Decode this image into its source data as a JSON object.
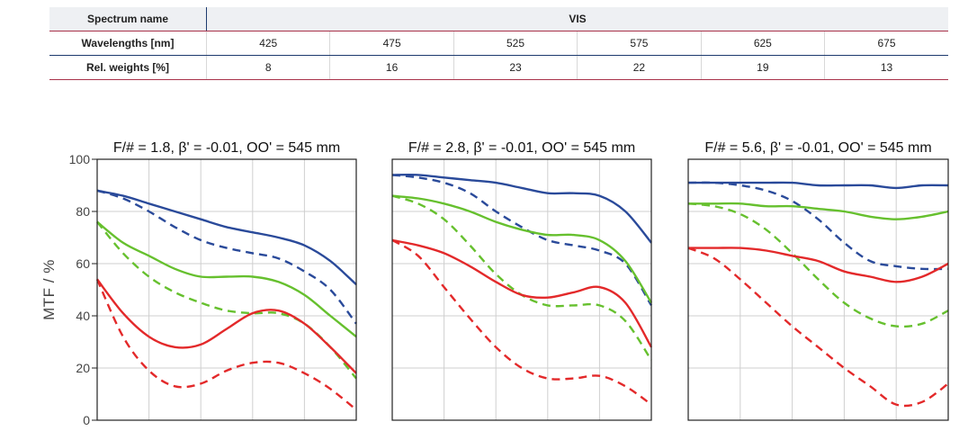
{
  "table": {
    "row1": {
      "label": "Spectrum name",
      "value": "VIS"
    },
    "row2": {
      "label": "Wavelengths [nm]",
      "values": [
        "425",
        "475",
        "525",
        "575",
        "625",
        "675"
      ]
    },
    "row3": {
      "label": "Rel. weights [%]",
      "values": [
        "8",
        "16",
        "23",
        "22",
        "19",
        "13"
      ]
    }
  },
  "colors": {
    "blue": "#2a4a9a",
    "green": "#66c02e",
    "red": "#e3292a"
  },
  "chart_data": [
    {
      "type": "line",
      "title": "F/# = 1.8, β' = -0.01, OO' = 545 mm",
      "ylabel": "MTF / %",
      "yticks": [
        "0",
        "20",
        "40",
        "60",
        "80",
        "100"
      ],
      "ylim": [
        0,
        100
      ],
      "xlim": [
        0,
        1
      ],
      "grid": true,
      "x": [
        0,
        0.1,
        0.2,
        0.3,
        0.4,
        0.5,
        0.6,
        0.7,
        0.8,
        0.9,
        1.0
      ],
      "series": [
        {
          "color": "blue",
          "dashed": false,
          "values": [
            88,
            86,
            83,
            80,
            77,
            74,
            72,
            70,
            67,
            61,
            52
          ]
        },
        {
          "color": "blue",
          "dashed": true,
          "values": [
            88,
            85,
            80,
            74,
            69,
            66,
            64,
            62,
            57,
            50,
            37
          ]
        },
        {
          "color": "green",
          "dashed": false,
          "values": [
            76,
            68,
            63,
            58,
            55,
            55,
            55,
            53,
            48,
            40,
            32
          ]
        },
        {
          "color": "green",
          "dashed": true,
          "values": [
            76,
            64,
            55,
            49,
            45,
            42,
            41,
            41,
            37,
            28,
            16
          ]
        },
        {
          "color": "red",
          "dashed": false,
          "values": [
            54,
            41,
            32,
            28,
            29,
            35,
            41,
            42,
            37,
            28,
            18
          ]
        },
        {
          "color": "red",
          "dashed": true,
          "values": [
            54,
            32,
            19,
            13,
            14,
            19,
            22,
            22,
            18,
            12,
            4
          ]
        }
      ]
    },
    {
      "type": "line",
      "title": "F/# = 2.8, β' = -0.01, OO' = 545 mm",
      "ylim": [
        0,
        100
      ],
      "xlim": [
        0,
        1
      ],
      "grid": true,
      "x": [
        0,
        0.1,
        0.2,
        0.3,
        0.4,
        0.5,
        0.6,
        0.7,
        0.8,
        0.9,
        1.0
      ],
      "series": [
        {
          "color": "blue",
          "dashed": false,
          "values": [
            94,
            94,
            93,
            92,
            91,
            89,
            87,
            87,
            86,
            80,
            68
          ]
        },
        {
          "color": "blue",
          "dashed": true,
          "values": [
            94,
            93,
            91,
            87,
            80,
            74,
            69,
            67,
            65,
            60,
            44
          ]
        },
        {
          "color": "green",
          "dashed": false,
          "values": [
            86,
            85,
            83,
            80,
            76,
            73,
            71,
            71,
            69,
            61,
            45
          ]
        },
        {
          "color": "green",
          "dashed": true,
          "values": [
            86,
            83,
            77,
            67,
            56,
            48,
            44,
            44,
            44,
            38,
            23
          ]
        },
        {
          "color": "red",
          "dashed": false,
          "values": [
            69,
            67,
            64,
            59,
            53,
            48,
            47,
            49,
            51,
            45,
            28
          ]
        },
        {
          "color": "red",
          "dashed": true,
          "values": [
            69,
            63,
            51,
            39,
            28,
            20,
            16,
            16,
            17,
            13,
            6
          ]
        }
      ]
    },
    {
      "type": "line",
      "title": "F/# = 5.6, β' = -0.01, OO' = 545 mm",
      "ylim": [
        0,
        100
      ],
      "xlim": [
        0,
        1
      ],
      "grid": true,
      "x": [
        0,
        0.1,
        0.2,
        0.3,
        0.4,
        0.5,
        0.6,
        0.7,
        0.8,
        0.9,
        1.0
      ],
      "series": [
        {
          "color": "blue",
          "dashed": false,
          "values": [
            91,
            91,
            91,
            91,
            91,
            90,
            90,
            90,
            89,
            90,
            90
          ]
        },
        {
          "color": "blue",
          "dashed": true,
          "values": [
            91,
            91,
            90,
            88,
            84,
            77,
            68,
            61,
            59,
            58,
            58
          ]
        },
        {
          "color": "green",
          "dashed": false,
          "values": [
            83,
            83,
            83,
            82,
            82,
            81,
            80,
            78,
            77,
            78,
            80
          ]
        },
        {
          "color": "green",
          "dashed": true,
          "values": [
            83,
            82,
            79,
            73,
            64,
            54,
            45,
            39,
            36,
            37,
            42
          ]
        },
        {
          "color": "red",
          "dashed": false,
          "values": [
            66,
            66,
            66,
            65,
            63,
            61,
            57,
            55,
            53,
            55,
            60
          ]
        },
        {
          "color": "red",
          "dashed": true,
          "values": [
            66,
            62,
            54,
            45,
            36,
            28,
            20,
            13,
            6,
            7,
            14
          ]
        }
      ]
    }
  ]
}
